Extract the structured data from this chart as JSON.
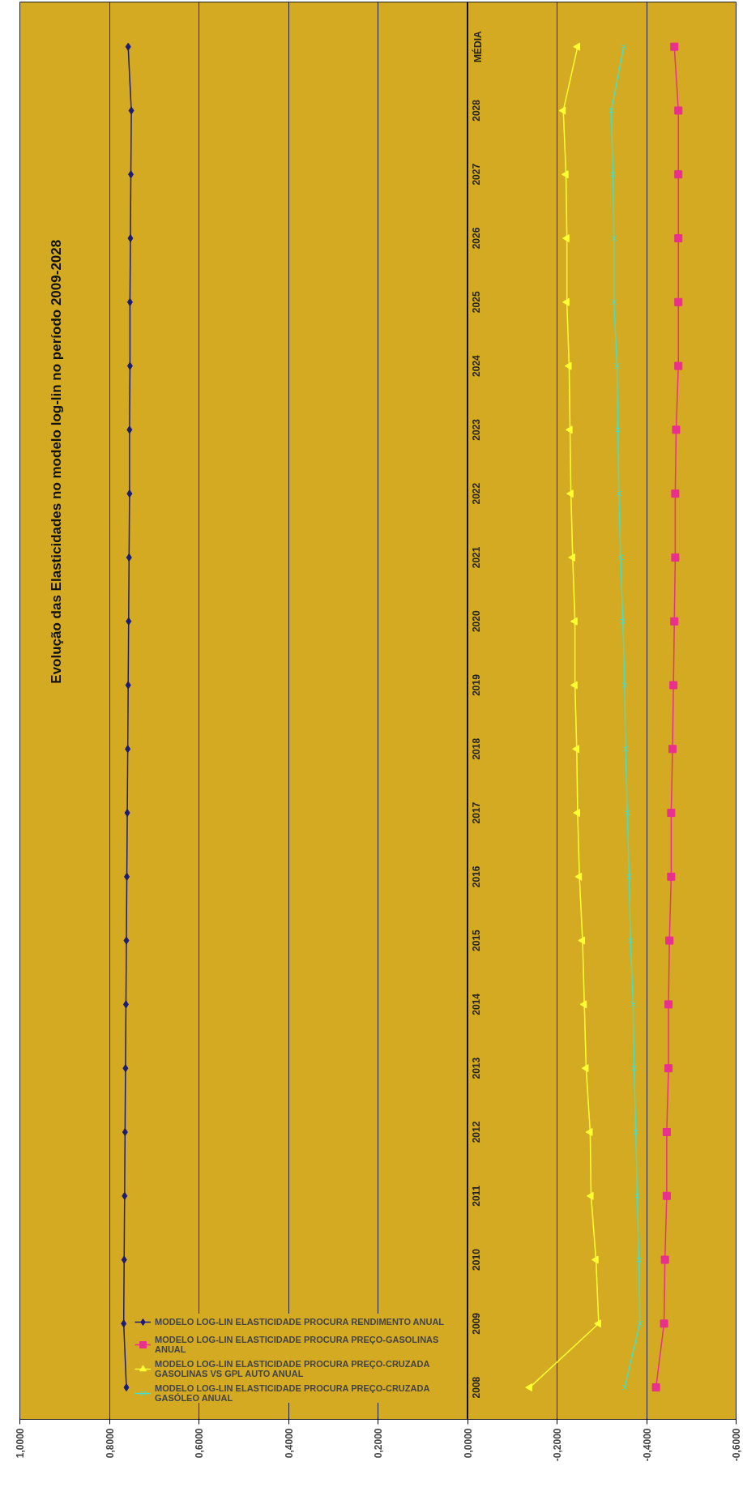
{
  "chart_data": {
    "type": "line",
    "orientation": "horizontal",
    "title": "Evolução das Elasticidades no modelo log-lin no período 2009-2028",
    "categories": [
      "MÉDIA",
      "2028",
      "2027",
      "2026",
      "2025",
      "2024",
      "2023",
      "2022",
      "2021",
      "2020",
      "2019",
      "2018",
      "2017",
      "2016",
      "2015",
      "2014",
      "2013",
      "2012",
      "2011",
      "2010",
      "2009",
      "2008"
    ],
    "series": [
      {
        "name": "MODELO LOG-LIN ELASTICIDADE PROCURA RENDIMENTO ANUAL",
        "color": "#1c1c78",
        "marker": "diamond",
        "values": [
          0.758,
          0.751,
          0.752,
          0.753,
          0.754,
          0.754,
          0.755,
          0.755,
          0.756,
          0.757,
          0.758,
          0.759,
          0.76,
          0.761,
          0.762,
          0.763,
          0.764,
          0.765,
          0.766,
          0.767,
          0.768,
          0.762
        ]
      },
      {
        "name": "MODELO LOG-LIN ELASTICIDADE PROCURA PREÇO-GASOLINAS ANUAL",
        "color": "#e8308c",
        "marker": "square",
        "values": [
          -0.462,
          -0.471,
          -0.471,
          -0.471,
          -0.471,
          -0.471,
          -0.466,
          -0.464,
          -0.464,
          -0.462,
          -0.46,
          -0.458,
          -0.455,
          -0.455,
          -0.451,
          -0.449,
          -0.449,
          -0.445,
          -0.445,
          -0.441,
          -0.439,
          -0.421
        ]
      },
      {
        "name": "MODELO LOG-LIN ELASTICIDADE PROCURA PREÇO-CRUZADA GASOLINAS VS GPL AUTO ANUAL",
        "color": "#ffff33",
        "marker": "triangle",
        "values": [
          -0.246,
          -0.214,
          -0.22,
          -0.222,
          -0.222,
          -0.227,
          -0.229,
          -0.231,
          -0.235,
          -0.24,
          -0.24,
          -0.244,
          -0.246,
          -0.25,
          -0.257,
          -0.261,
          -0.265,
          -0.274,
          -0.276,
          -0.287,
          -0.293,
          -0.139
        ]
      },
      {
        "name": "MODELO LOG-LIN ELASTICIDADE PROCURA PREÇO-CRUZADA GASÓLEO ANUAL",
        "color": "#40e0d0",
        "marker": "cross",
        "values": [
          -0.349,
          -0.321,
          -0.325,
          -0.327,
          -0.327,
          -0.334,
          -0.336,
          -0.338,
          -0.342,
          -0.347,
          -0.351,
          -0.353,
          -0.357,
          -0.361,
          -0.364,
          -0.37,
          -0.372,
          -0.376,
          -0.379,
          -0.383,
          -0.385,
          -0.351
        ]
      }
    ],
    "xlim": [
      1.0,
      -0.6
    ],
    "xticks": [
      {
        "value": 1.0,
        "label": "1,0000"
      },
      {
        "value": 0.8,
        "label": "0,8000"
      },
      {
        "value": 0.6,
        "label": "0,6000"
      },
      {
        "value": 0.4,
        "label": "0,4000"
      },
      {
        "value": 0.2,
        "label": "0,2000"
      },
      {
        "value": 0.0,
        "label": "0,0000"
      },
      {
        "value": -0.2,
        "label": "-0,2000"
      },
      {
        "value": -0.4,
        "label": "-0,4000"
      },
      {
        "value": -0.6,
        "label": "-0,6000"
      }
    ],
    "grid": "x",
    "legend": "bottom left"
  }
}
